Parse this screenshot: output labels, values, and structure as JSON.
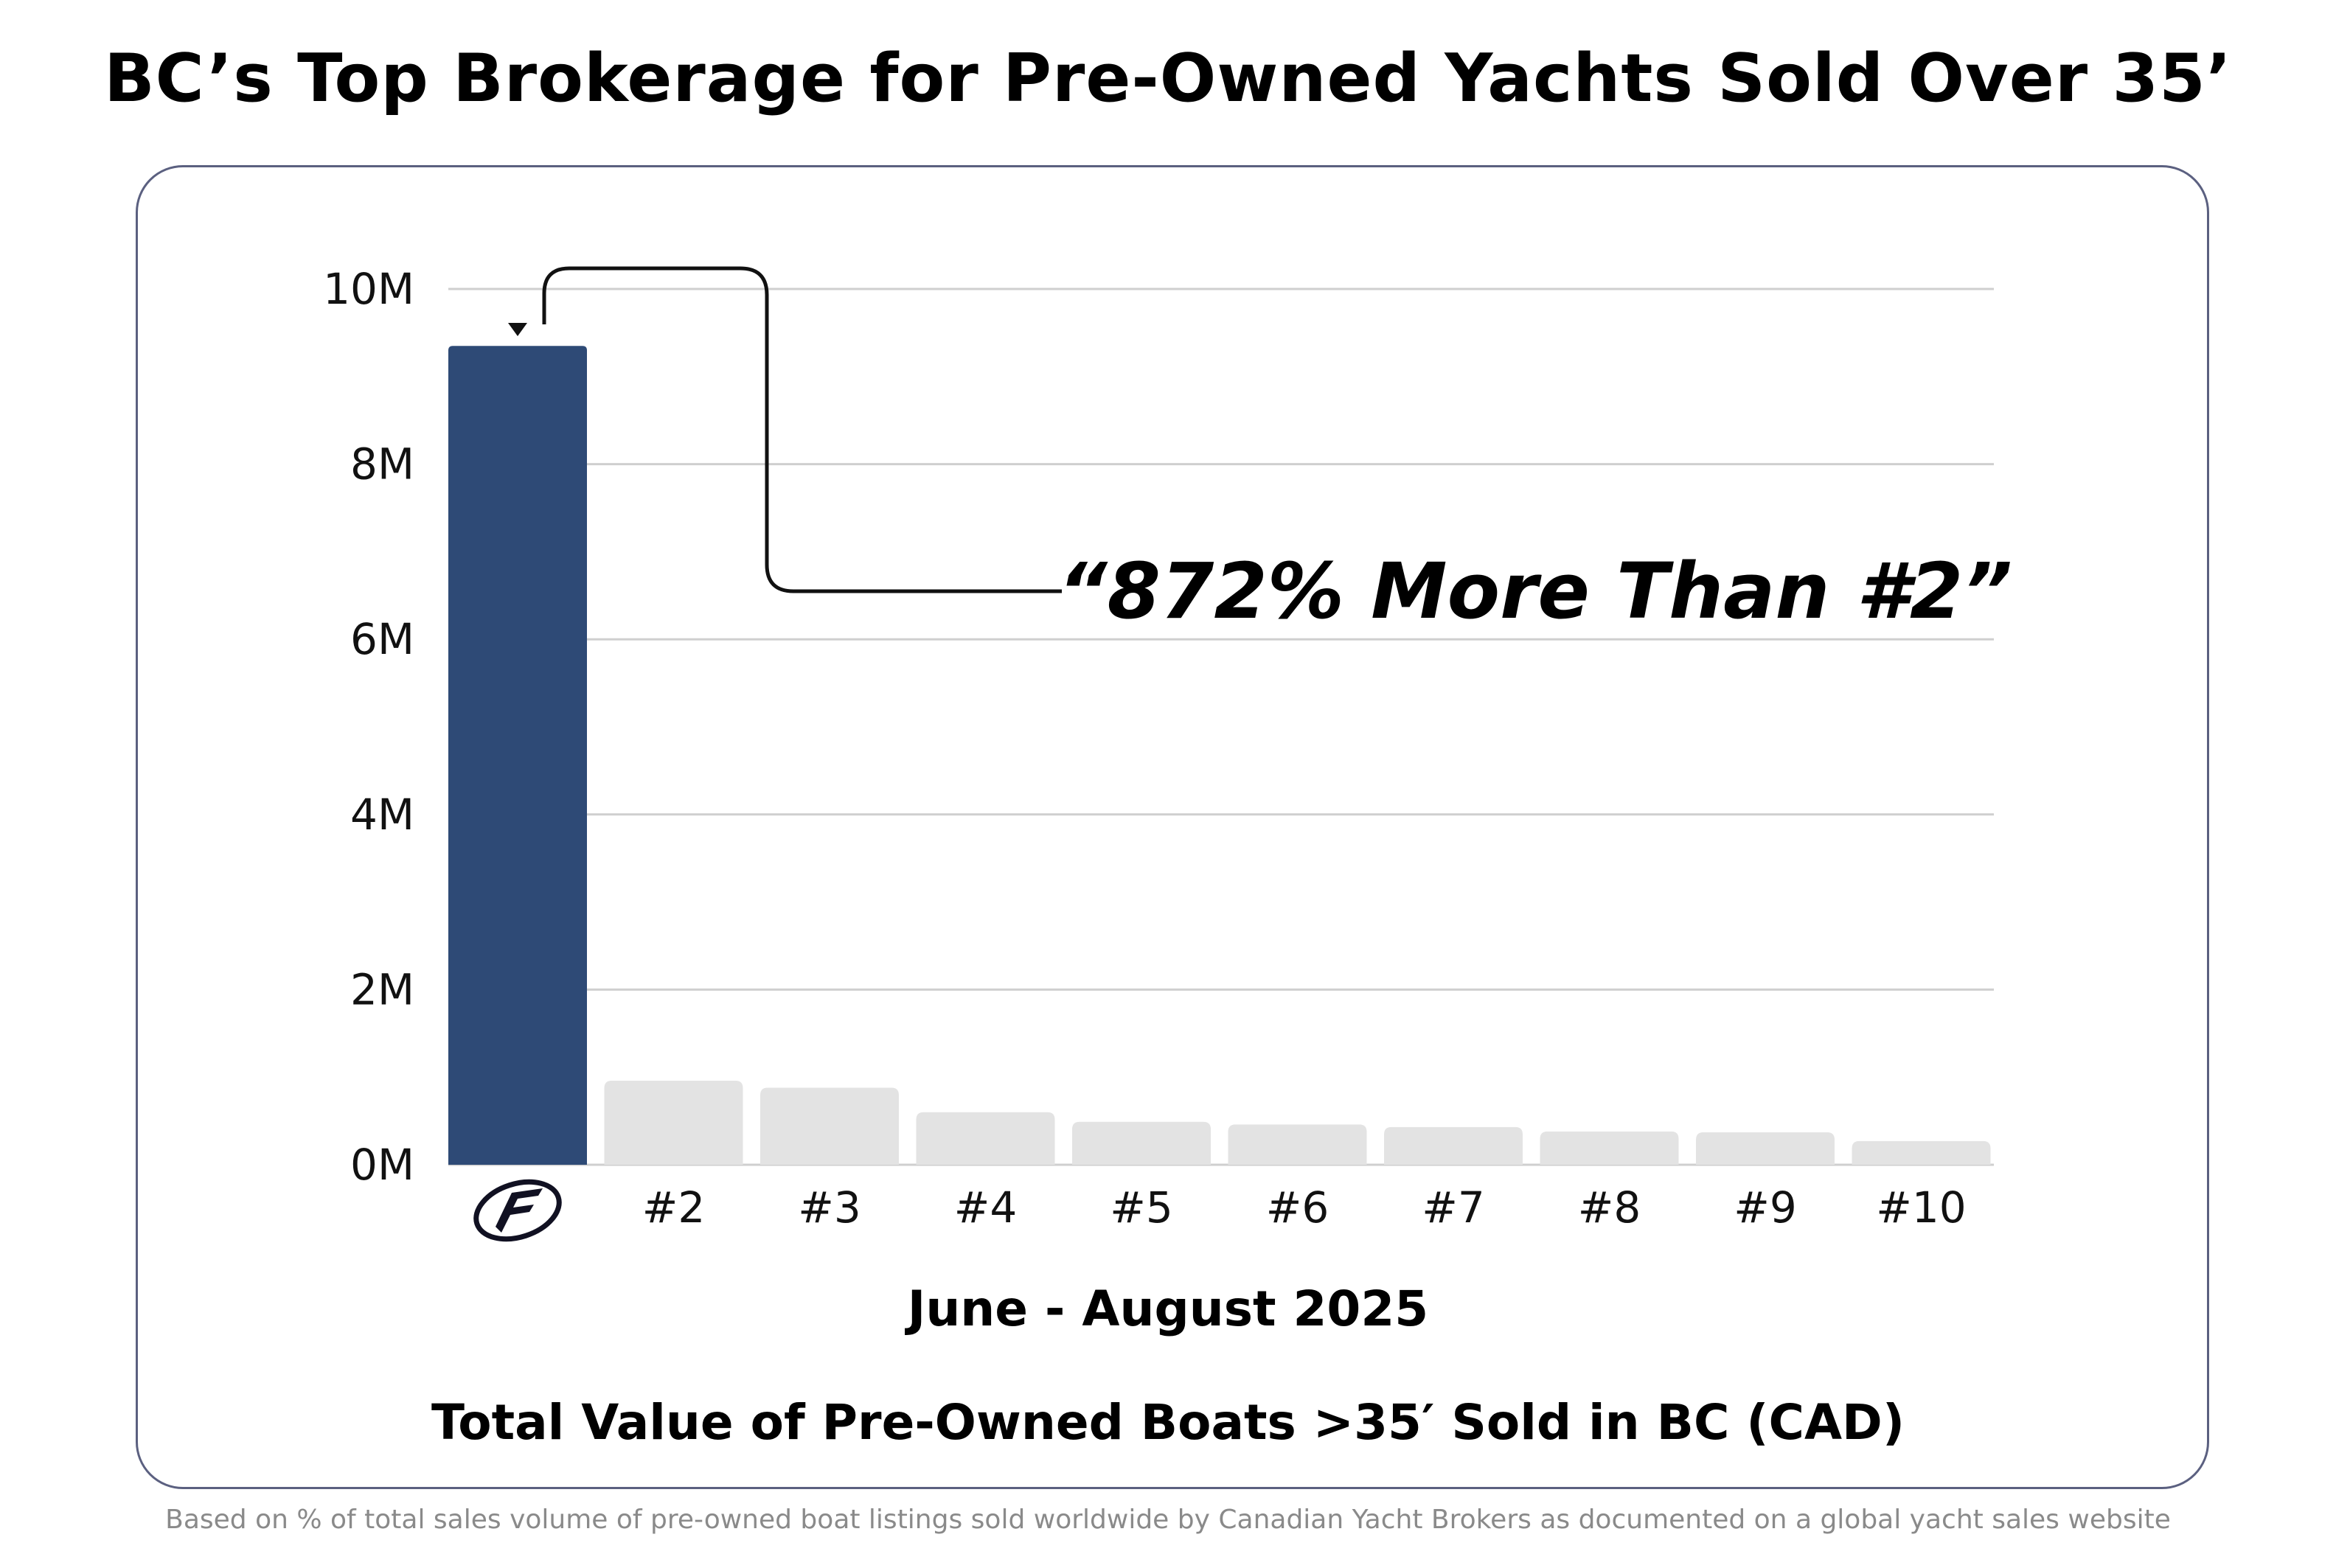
{
  "page": {
    "title": "BC’s Top Brokerage for Pre-Owned Yachts Sold Over 35’",
    "footnote": "Based on % of total sales volume of pre-owned boat listings sold worldwide by Canadian Yacht Brokers as documented on a global yacht sales website"
  },
  "chart_data": {
    "type": "bar",
    "categories": [
      "logo",
      "#2",
      "#3",
      "#4",
      "#5",
      "#6",
      "#7",
      "#8",
      "#9",
      "#10"
    ],
    "first_category_icon": "brokerage-logo-icon",
    "values": [
      9.35,
      0.96,
      0.88,
      0.6,
      0.49,
      0.46,
      0.43,
      0.38,
      0.37,
      0.27
    ],
    "value_unit": "M",
    "ylim": [
      0,
      10
    ],
    "yticks": [
      0,
      2,
      4,
      6,
      8,
      10
    ],
    "ytick_labels": [
      "0M",
      "2M",
      "4M",
      "6M",
      "8M",
      "10M"
    ],
    "grid": true,
    "bar_colors": {
      "highlight": "#2e4a76",
      "others": "#e3e3e3"
    },
    "annotation": {
      "text": "“872% More Than #2”",
      "target_category": "logo"
    },
    "period_label": "June - August 2025",
    "xlabel": "Total Value of Pre-Owned Boats >35′ Sold in BC (CAD)"
  }
}
